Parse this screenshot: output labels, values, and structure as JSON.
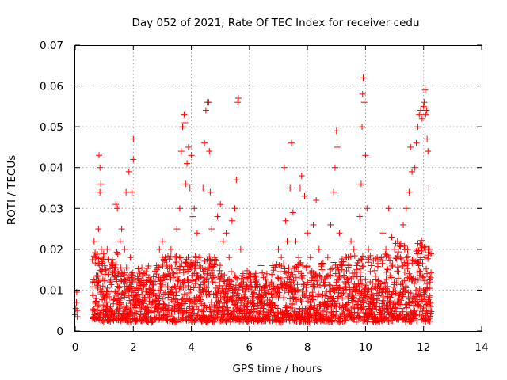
{
  "chart_data": {
    "type": "scatter",
    "title": "Day 052 of 2021, Rate Of TEC Index for receiver cedu",
    "xlabel": "GPS time / hours",
    "ylabel": "ROTI / TECUs",
    "xlim": [
      0,
      14
    ],
    "ylim": [
      0,
      0.07
    ],
    "xticks": [
      0,
      2,
      4,
      6,
      8,
      10,
      12,
      14
    ],
    "xtick_labels": [
      "0",
      "2",
      "4",
      "6",
      "8",
      "10",
      "12",
      "14"
    ],
    "yticks": [
      0,
      0.01,
      0.02,
      0.03,
      0.04,
      0.05,
      0.06,
      0.07
    ],
    "ytick_labels": [
      "0",
      "0.01",
      "0.02",
      "0.03",
      "0.04",
      "0.05",
      "0.06",
      "0.07"
    ],
    "grid": true,
    "marker": "+",
    "color": "#ff0000",
    "series": [
      {
        "name": "ROTI",
        "points": [
          [
            0.0,
            0.004
          ],
          [
            0.02,
            0.0055
          ],
          [
            0.04,
            0.007
          ],
          [
            0.05,
            0.0095
          ],
          [
            0.06,
            0.005
          ],
          [
            0.07,
            0.0035
          ],
          [
            0.6,
            0.003
          ],
          [
            0.6,
            0.012
          ],
          [
            0.65,
            0.022
          ],
          [
            0.7,
            0.018
          ],
          [
            0.75,
            0.006
          ],
          [
            0.8,
            0.025
          ],
          [
            0.82,
            0.043
          ],
          [
            0.85,
            0.034
          ],
          [
            0.85,
            0.04
          ],
          [
            0.88,
            0.036
          ],
          [
            0.9,
            0.02
          ],
          [
            0.95,
            0.011
          ],
          [
            1.0,
            0.008
          ],
          [
            1.05,
            0.015
          ],
          [
            1.1,
            0.02
          ],
          [
            1.2,
            0.012
          ],
          [
            1.3,
            0.016
          ],
          [
            1.4,
            0.031
          ],
          [
            1.45,
            0.03
          ],
          [
            1.5,
            0.014
          ],
          [
            1.55,
            0.022
          ],
          [
            1.6,
            0.025
          ],
          [
            1.7,
            0.02
          ],
          [
            1.75,
            0.034
          ],
          [
            1.8,
            0.013
          ],
          [
            1.85,
            0.039
          ],
          [
            1.9,
            0.018
          ],
          [
            1.95,
            0.034
          ],
          [
            2.0,
            0.047
          ],
          [
            2.0,
            0.042
          ],
          [
            2.05,
            0.01
          ],
          [
            2.2,
            0.012
          ],
          [
            2.4,
            0.008
          ],
          [
            2.6,
            0.012
          ],
          [
            2.8,
            0.016
          ],
          [
            2.9,
            0.02
          ],
          [
            3.0,
            0.022
          ],
          [
            3.1,
            0.018
          ],
          [
            3.2,
            0.014
          ],
          [
            3.3,
            0.02
          ],
          [
            3.4,
            0.014
          ],
          [
            3.5,
            0.025
          ],
          [
            3.6,
            0.03
          ],
          [
            3.65,
            0.044
          ],
          [
            3.7,
            0.05
          ],
          [
            3.75,
            0.053
          ],
          [
            3.78,
            0.051
          ],
          [
            3.8,
            0.036
          ],
          [
            3.85,
            0.041
          ],
          [
            3.9,
            0.045
          ],
          [
            3.95,
            0.035
          ],
          [
            4.0,
            0.043
          ],
          [
            4.05,
            0.028
          ],
          [
            4.1,
            0.03
          ],
          [
            4.2,
            0.024
          ],
          [
            4.3,
            0.018
          ],
          [
            4.4,
            0.035
          ],
          [
            4.45,
            0.046
          ],
          [
            4.5,
            0.054
          ],
          [
            4.55,
            0.056
          ],
          [
            4.6,
            0.056
          ],
          [
            4.62,
            0.044
          ],
          [
            4.65,
            0.034
          ],
          [
            4.7,
            0.025
          ],
          [
            4.8,
            0.018
          ],
          [
            4.9,
            0.028
          ],
          [
            5.0,
            0.031
          ],
          [
            5.1,
            0.022
          ],
          [
            5.2,
            0.024
          ],
          [
            5.3,
            0.018
          ],
          [
            5.4,
            0.027
          ],
          [
            5.5,
            0.03
          ],
          [
            5.55,
            0.037
          ],
          [
            5.6,
            0.056
          ],
          [
            5.62,
            0.057
          ],
          [
            5.7,
            0.02
          ],
          [
            5.8,
            0.012
          ],
          [
            6.0,
            0.014
          ],
          [
            6.2,
            0.012
          ],
          [
            6.4,
            0.016
          ],
          [
            6.6,
            0.014
          ],
          [
            6.8,
            0.016
          ],
          [
            7.0,
            0.02
          ],
          [
            7.1,
            0.018
          ],
          [
            7.2,
            0.04
          ],
          [
            7.25,
            0.027
          ],
          [
            7.3,
            0.022
          ],
          [
            7.4,
            0.035
          ],
          [
            7.45,
            0.046
          ],
          [
            7.5,
            0.029
          ],
          [
            7.6,
            0.022
          ],
          [
            7.7,
            0.018
          ],
          [
            7.75,
            0.035
          ],
          [
            7.8,
            0.038
          ],
          [
            7.9,
            0.033
          ],
          [
            8.0,
            0.024
          ],
          [
            8.1,
            0.018
          ],
          [
            8.2,
            0.026
          ],
          [
            8.3,
            0.032
          ],
          [
            8.4,
            0.02
          ],
          [
            8.5,
            0.015
          ],
          [
            8.6,
            0.013
          ],
          [
            8.7,
            0.018
          ],
          [
            8.8,
            0.026
          ],
          [
            8.9,
            0.034
          ],
          [
            8.95,
            0.04
          ],
          [
            9.0,
            0.049
          ],
          [
            9.02,
            0.045
          ],
          [
            9.1,
            0.024
          ],
          [
            9.2,
            0.016
          ],
          [
            9.3,
            0.012
          ],
          [
            9.4,
            0.018
          ],
          [
            9.5,
            0.022
          ],
          [
            9.6,
            0.02
          ],
          [
            9.7,
            0.016
          ],
          [
            9.8,
            0.028
          ],
          [
            9.85,
            0.036
          ],
          [
            9.88,
            0.05
          ],
          [
            9.9,
            0.058
          ],
          [
            9.92,
            0.062
          ],
          [
            9.95,
            0.056
          ],
          [
            10.0,
            0.043
          ],
          [
            10.05,
            0.03
          ],
          [
            10.1,
            0.02
          ],
          [
            10.2,
            0.016
          ],
          [
            10.4,
            0.018
          ],
          [
            10.6,
            0.024
          ],
          [
            10.7,
            0.02
          ],
          [
            10.8,
            0.03
          ],
          [
            10.9,
            0.023
          ],
          [
            11.0,
            0.02
          ],
          [
            11.1,
            0.022
          ],
          [
            11.2,
            0.018
          ],
          [
            11.3,
            0.026
          ],
          [
            11.4,
            0.03
          ],
          [
            11.5,
            0.034
          ],
          [
            11.55,
            0.045
          ],
          [
            11.6,
            0.039
          ],
          [
            11.7,
            0.04
          ],
          [
            11.75,
            0.046
          ],
          [
            11.8,
            0.05
          ],
          [
            11.85,
            0.053
          ],
          [
            11.9,
            0.054
          ],
          [
            11.95,
            0.052
          ],
          [
            12.0,
            0.055
          ],
          [
            12.02,
            0.056
          ],
          [
            12.05,
            0.059
          ],
          [
            12.07,
            0.053
          ],
          [
            12.1,
            0.054
          ],
          [
            12.12,
            0.047
          ],
          [
            12.15,
            0.044
          ],
          [
            12.18,
            0.035
          ],
          [
            12.2,
            0.02
          ],
          [
            12.22,
            0.012
          ],
          [
            12.25,
            0.006
          ]
        ]
      }
    ]
  }
}
